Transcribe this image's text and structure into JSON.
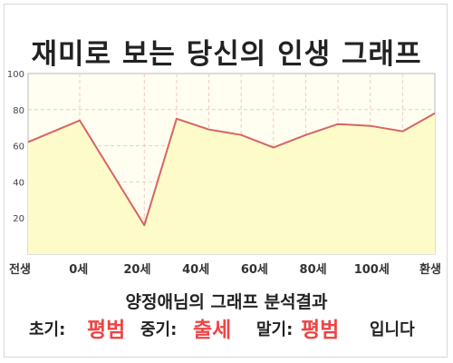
{
  "chart_data": {
    "type": "area",
    "title": "재미로 보는 당신의 인생 그래프",
    "x": [
      "전생",
      "0세",
      "20세",
      "40세",
      "60세",
      "80세",
      "100세",
      "환생"
    ],
    "series": [
      {
        "x": [
          -16,
          0,
          20,
          30,
          40,
          50,
          60,
          70,
          80,
          90,
          100,
          110
        ],
        "values": [
          62,
          74,
          16,
          75,
          69,
          66,
          59,
          66,
          72,
          71,
          68,
          78
        ]
      }
    ],
    "xlim": [
      -16,
      110
    ],
    "ylim": [
      0,
      100
    ],
    "yticks": [
      20,
      40,
      60,
      80,
      100
    ],
    "grid": true,
    "line_color": "#d86464",
    "fill_color": "#fdfbc9"
  },
  "result": {
    "title": "양정애님의 그래프 분석결과",
    "early_label": "초기:",
    "early_value": "평범",
    "middle_label": "중기:",
    "middle_value": "출세",
    "late_label": "말기:",
    "late_value": "평범",
    "suffix": "입니다"
  }
}
